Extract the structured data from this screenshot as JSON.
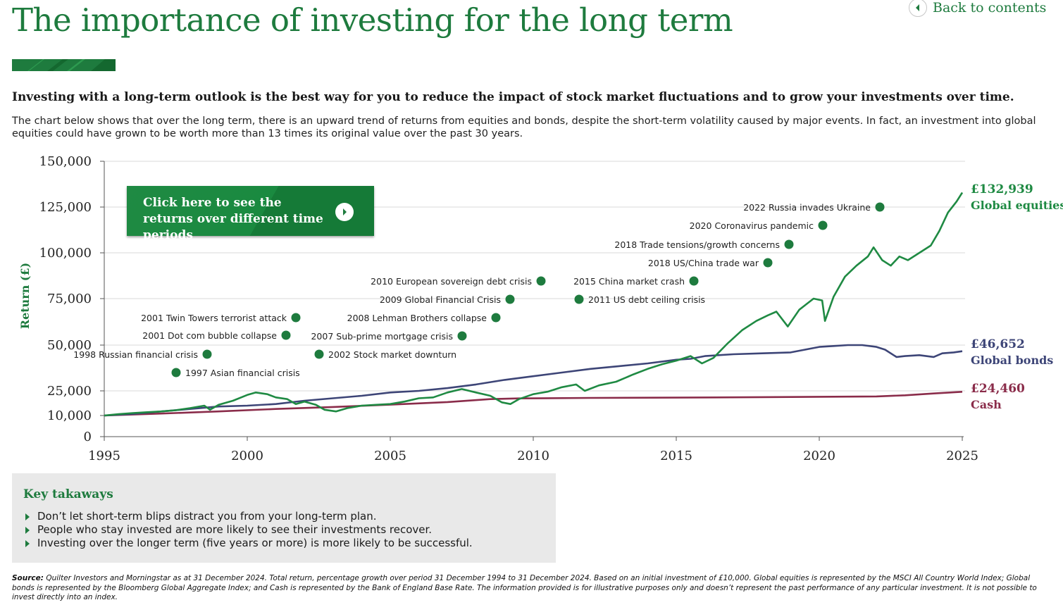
{
  "header": {
    "title": "The importance of investing for the long term",
    "back_link": "Back to contents"
  },
  "brand_colors": {
    "green": "#1e7b3e",
    "navy": "#3d4577",
    "maroon": "#8a2c4a"
  },
  "intro": {
    "heading": "Investing with a long-term outlook is the best way for you to reduce the impact of stock market fluctuations and to grow your investments over time.",
    "body": "The chart below shows that over the long term, there is an upward trend of returns from equities and bonds, despite the short-term volatility caused by major events. In fact, an investment into global equities could have grown to be worth more than 13 times its original value over the past 30 years."
  },
  "cta": {
    "label": "Click here to see the returns over different time periods",
    "icon": "chevron-right-circle-icon"
  },
  "chart_data": {
    "type": "line",
    "ylabel": "Return (£)",
    "xlabel": "",
    "xlim": [
      1995,
      2025
    ],
    "ylim": [
      0,
      150000
    ],
    "y_ticks": [
      0,
      10000,
      25000,
      50000,
      75000,
      100000,
      125000,
      150000
    ],
    "y_tick_labels": [
      "0",
      "10,000",
      "25,000",
      "50,000",
      "75,000",
      "100,000",
      "125,000",
      "150,000"
    ],
    "x_ticks": [
      1995,
      2000,
      2005,
      2010,
      2015,
      2020,
      2025
    ],
    "x_tick_labels": [
      "1995",
      "2000",
      "2005",
      "2010",
      "2015",
      "2020",
      "2025"
    ],
    "grid": "horizontal",
    "series": [
      {
        "name": "Global equities",
        "end_label": "£132,939",
        "color": "#1f8a43",
        "points": [
          [
            1995.0,
            10000
          ],
          [
            1995.5,
            10800
          ],
          [
            1996.0,
            11500
          ],
          [
            1996.5,
            12000
          ],
          [
            1997.0,
            12500
          ],
          [
            1997.5,
            13200
          ],
          [
            1998.0,
            14500
          ],
          [
            1998.5,
            16000
          ],
          [
            1998.7,
            13500
          ],
          [
            1999.0,
            16500
          ],
          [
            1999.5,
            19000
          ],
          [
            2000.0,
            22500
          ],
          [
            2000.3,
            24000
          ],
          [
            2000.7,
            23000
          ],
          [
            2001.0,
            21000
          ],
          [
            2001.4,
            20000
          ],
          [
            2001.7,
            17000
          ],
          [
            2002.0,
            18500
          ],
          [
            2002.4,
            16500
          ],
          [
            2002.7,
            13500
          ],
          [
            2003.1,
            12500
          ],
          [
            2003.5,
            14500
          ],
          [
            2004.0,
            16000
          ],
          [
            2004.5,
            16500
          ],
          [
            2005.0,
            17000
          ],
          [
            2005.5,
            18500
          ],
          [
            2006.0,
            20500
          ],
          [
            2006.5,
            21000
          ],
          [
            2007.0,
            24000
          ],
          [
            2007.5,
            26000
          ],
          [
            2008.0,
            24000
          ],
          [
            2008.5,
            22000
          ],
          [
            2008.9,
            18000
          ],
          [
            2009.2,
            17000
          ],
          [
            2009.5,
            20000
          ],
          [
            2010.0,
            23000
          ],
          [
            2010.5,
            24500
          ],
          [
            2011.0,
            27000
          ],
          [
            2011.5,
            28500
          ],
          [
            2011.8,
            25000
          ],
          [
            2012.3,
            28000
          ],
          [
            2012.9,
            30000
          ],
          [
            2013.5,
            34000
          ],
          [
            2014.0,
            37000
          ],
          [
            2014.5,
            39500
          ],
          [
            2015.0,
            41500
          ],
          [
            2015.5,
            44000
          ],
          [
            2015.9,
            40000
          ],
          [
            2016.3,
            43000
          ],
          [
            2016.8,
            51000
          ],
          [
            2017.3,
            58000
          ],
          [
            2017.8,
            63000
          ],
          [
            2018.2,
            66000
          ],
          [
            2018.5,
            68000
          ],
          [
            2018.9,
            60000
          ],
          [
            2019.3,
            69000
          ],
          [
            2019.8,
            75000
          ],
          [
            2020.1,
            74000
          ],
          [
            2020.2,
            63000
          ],
          [
            2020.5,
            76000
          ],
          [
            2020.9,
            87000
          ],
          [
            2021.3,
            93000
          ],
          [
            2021.7,
            98000
          ],
          [
            2021.9,
            103000
          ],
          [
            2022.2,
            96000
          ],
          [
            2022.5,
            93000
          ],
          [
            2022.8,
            98000
          ],
          [
            2023.1,
            96000
          ],
          [
            2023.5,
            100000
          ],
          [
            2023.9,
            104000
          ],
          [
            2024.2,
            112000
          ],
          [
            2024.5,
            122000
          ],
          [
            2024.8,
            128000
          ],
          [
            2025.0,
            132939
          ]
        ]
      },
      {
        "name": "Global bonds",
        "end_label": "£46,652",
        "color": "#3d4577",
        "points": [
          [
            1995.0,
            10000
          ],
          [
            1996.0,
            11000
          ],
          [
            1997.0,
            12500
          ],
          [
            1998.0,
            14000
          ],
          [
            1999.0,
            15500
          ],
          [
            2000.0,
            16000
          ],
          [
            2001.0,
            17000
          ],
          [
            2002.0,
            19000
          ],
          [
            2003.0,
            20500
          ],
          [
            2004.0,
            22000
          ],
          [
            2005.0,
            24000
          ],
          [
            2006.0,
            25000
          ],
          [
            2007.0,
            26500
          ],
          [
            2008.0,
            28500
          ],
          [
            2009.0,
            31000
          ],
          [
            2010.0,
            33000
          ],
          [
            2011.0,
            35000
          ],
          [
            2012.0,
            37000
          ],
          [
            2013.0,
            38500
          ],
          [
            2014.0,
            40000
          ],
          [
            2015.0,
            42000
          ],
          [
            2015.5,
            42500
          ],
          [
            2016.0,
            44000
          ],
          [
            2017.0,
            45000
          ],
          [
            2018.0,
            45500
          ],
          [
            2019.0,
            46000
          ],
          [
            2019.5,
            47500
          ],
          [
            2020.0,
            49000
          ],
          [
            2020.5,
            49500
          ],
          [
            2021.0,
            50000
          ],
          [
            2021.5,
            50000
          ],
          [
            2022.0,
            49000
          ],
          [
            2022.3,
            47500
          ],
          [
            2022.7,
            43500
          ],
          [
            2023.0,
            44000
          ],
          [
            2023.5,
            44500
          ],
          [
            2024.0,
            43500
          ],
          [
            2024.3,
            45500
          ],
          [
            2024.7,
            46000
          ],
          [
            2025.0,
            46652
          ]
        ]
      },
      {
        "name": "Cash",
        "end_label": "£24,460",
        "color": "#8a2c4a",
        "points": [
          [
            1995.0,
            10000
          ],
          [
            1997.0,
            11200
          ],
          [
            1999.0,
            12500
          ],
          [
            2001.0,
            14000
          ],
          [
            2003.0,
            15200
          ],
          [
            2005.0,
            16600
          ],
          [
            2007.0,
            18200
          ],
          [
            2008.5,
            20000
          ],
          [
            2009.5,
            20400
          ],
          [
            2012.0,
            20700
          ],
          [
            2015.0,
            20900
          ],
          [
            2018.0,
            21200
          ],
          [
            2020.0,
            21400
          ],
          [
            2022.0,
            21600
          ],
          [
            2023.0,
            22300
          ],
          [
            2024.0,
            23400
          ],
          [
            2025.0,
            24460
          ]
        ]
      }
    ],
    "annotations": [
      {
        "label": "1997 Asian financial crisis",
        "side": "right"
      },
      {
        "label": "1998 Russian financial crisis",
        "side": "left"
      },
      {
        "label": "2001 Dot com bubble collapse",
        "side": "left"
      },
      {
        "label": "2001 Twin Towers terrorist attack",
        "side": "left"
      },
      {
        "label": "2002 Stock market downturn",
        "side": "right"
      },
      {
        "label": "2007 Sub-prime mortgage crisis",
        "side": "left"
      },
      {
        "label": "2008 Lehman Brothers collapse",
        "side": "left"
      },
      {
        "label": "2009 Global Financial Crisis",
        "side": "left"
      },
      {
        "label": "2010 European sovereign debt crisis",
        "side": "left"
      },
      {
        "label": "2011 US debt ceiling crisis",
        "side": "right"
      },
      {
        "label": "2015 China market crash",
        "side": "left"
      },
      {
        "label": "2018 US/China trade war",
        "side": "left"
      },
      {
        "label": "2018 Trade tensions/growth concerns",
        "side": "left"
      },
      {
        "label": "2020 Coronavirus pandemic",
        "side": "left"
      },
      {
        "label": "2022 Russia invades Ukraine",
        "side": "left"
      }
    ]
  },
  "takeaways": {
    "title": "Key takaways",
    "items": [
      "Don’t let short-term blips distract you from your long-term plan.",
      "People who stay invested are more likely to see their investments recover.",
      "Investing over the longer term (five years or more) is more likely to be successful."
    ]
  },
  "source": {
    "label": "Source:",
    "text": "Quilter Investors and Morningstar as at 31 December 2024. Total return, percentage growth over period 31 December 1994 to 31 December 2024. Based on an initial investment of £10,000. Global equities is represented by the MSCI All Country World Index; Global bonds is represented by the Bloomberg Global Aggregate Index; and Cash is represented by the Bank of England Base Rate. The information provided is for illustrative purposes only and doesn’t represent the past performance of any particular investment. It is not possible to invest directly into an index."
  }
}
